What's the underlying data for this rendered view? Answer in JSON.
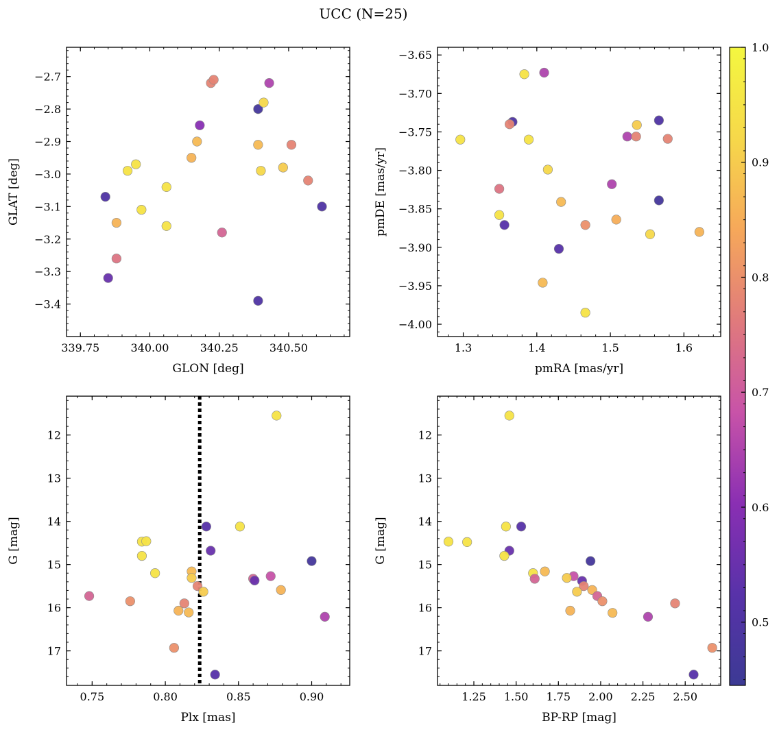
{
  "figure_title": "UCC (N=25)",
  "colorbar": {
    "range": [
      0.445,
      1.0
    ],
    "ticks": [
      0.5,
      0.6,
      0.7,
      0.8,
      0.9,
      1.0
    ],
    "tick_labels": [
      "0.5",
      "0.6",
      "0.7",
      "0.8",
      "0.9",
      "1.0"
    ],
    "colormap": "plasma",
    "colormap_stops": [
      "#3c3a94",
      "#5832a9",
      "#8a2fb3",
      "#c853a8",
      "#e07a7c",
      "#f6a85a",
      "#f6d84a",
      "#f4f740"
    ]
  },
  "chart_data": [
    {
      "type": "scatter",
      "xlabel": "GLON [deg]",
      "ylabel": "GLAT [deg]",
      "xlim": [
        339.7,
        340.72
      ],
      "ylim": [
        -3.5,
        -2.61
      ],
      "y_inverted": false,
      "xticks": [
        339.75,
        340.0,
        340.25,
        340.5
      ],
      "xtick_labels": [
        "339.75",
        "340.00",
        "340.25",
        "340.50"
      ],
      "yticks": [
        -3.4,
        -3.3,
        -3.2,
        -3.1,
        -3.0,
        -2.9,
        -2.8,
        -2.7
      ],
      "ytick_labels": [
        "−3.4",
        "−3.3",
        "−3.2",
        "−3.1",
        "−3.0",
        "−2.9",
        "−2.8",
        "−2.7"
      ],
      "points": [
        {
          "x": 340.22,
          "y": -2.72,
          "c": 0.78
        },
        {
          "x": 340.23,
          "y": -2.71,
          "c": 0.78
        },
        {
          "x": 340.43,
          "y": -2.72,
          "c": 0.65
        },
        {
          "x": 340.39,
          "y": -2.8,
          "c": 0.47
        },
        {
          "x": 340.41,
          "y": -2.78,
          "c": 0.92
        },
        {
          "x": 340.18,
          "y": -2.85,
          "c": 0.6
        },
        {
          "x": 340.17,
          "y": -2.9,
          "c": 0.87
        },
        {
          "x": 340.39,
          "y": -2.91,
          "c": 0.87
        },
        {
          "x": 340.51,
          "y": -2.91,
          "c": 0.78
        },
        {
          "x": 340.15,
          "y": -2.95,
          "c": 0.86
        },
        {
          "x": 339.95,
          "y": -2.97,
          "c": 0.95
        },
        {
          "x": 339.92,
          "y": -2.99,
          "c": 0.95
        },
        {
          "x": 340.4,
          "y": -2.99,
          "c": 0.92
        },
        {
          "x": 340.48,
          "y": -2.98,
          "c": 0.9
        },
        {
          "x": 340.57,
          "y": -3.02,
          "c": 0.78
        },
        {
          "x": 340.06,
          "y": -3.04,
          "c": 0.95
        },
        {
          "x": 339.84,
          "y": -3.07,
          "c": 0.5
        },
        {
          "x": 340.62,
          "y": -3.1,
          "c": 0.5
        },
        {
          "x": 339.97,
          "y": -3.11,
          "c": 0.95
        },
        {
          "x": 339.88,
          "y": -3.15,
          "c": 0.86
        },
        {
          "x": 340.06,
          "y": -3.16,
          "c": 0.95
        },
        {
          "x": 340.26,
          "y": -3.18,
          "c": 0.72
        },
        {
          "x": 339.88,
          "y": -3.26,
          "c": 0.75
        },
        {
          "x": 339.85,
          "y": -3.32,
          "c": 0.55
        },
        {
          "x": 340.39,
          "y": -3.39,
          "c": 0.5
        }
      ]
    },
    {
      "type": "scatter",
      "xlabel": "pmRA [mas/yr]",
      "ylabel": "pmDE [mas/yr]",
      "xlim": [
        1.265,
        1.65
      ],
      "ylim": [
        -4.016,
        -3.64
      ],
      "y_inverted": false,
      "xticks": [
        1.3,
        1.4,
        1.5,
        1.6
      ],
      "xtick_labels": [
        "1.3",
        "1.4",
        "1.5",
        "1.6"
      ],
      "yticks": [
        -4.0,
        -3.95,
        -3.9,
        -3.85,
        -3.8,
        -3.75,
        -3.7,
        -3.65
      ],
      "ytick_labels": [
        "−4.00",
        "−3.95",
        "−3.90",
        "−3.85",
        "−3.80",
        "−3.75",
        "−3.70",
        "−3.65"
      ],
      "points": [
        {
          "x": 1.383,
          "y": -3.675,
          "c": 0.95
        },
        {
          "x": 1.41,
          "y": -3.673,
          "c": 0.65
        },
        {
          "x": 1.367,
          "y": -3.737,
          "c": 0.5
        },
        {
          "x": 1.363,
          "y": -3.74,
          "c": 0.78
        },
        {
          "x": 1.296,
          "y": -3.76,
          "c": 0.95
        },
        {
          "x": 1.389,
          "y": -3.76,
          "c": 0.95
        },
        {
          "x": 1.536,
          "y": -3.741,
          "c": 0.9
        },
        {
          "x": 1.566,
          "y": -3.735,
          "c": 0.5
        },
        {
          "x": 1.523,
          "y": -3.756,
          "c": 0.65
        },
        {
          "x": 1.535,
          "y": -3.756,
          "c": 0.78
        },
        {
          "x": 1.578,
          "y": -3.759,
          "c": 0.78
        },
        {
          "x": 1.415,
          "y": -3.799,
          "c": 0.92
        },
        {
          "x": 1.502,
          "y": -3.818,
          "c": 0.65
        },
        {
          "x": 1.349,
          "y": -3.824,
          "c": 0.75
        },
        {
          "x": 1.566,
          "y": -3.839,
          "c": 0.47
        },
        {
          "x": 1.433,
          "y": -3.841,
          "c": 0.87
        },
        {
          "x": 1.349,
          "y": -3.858,
          "c": 0.95
        },
        {
          "x": 1.508,
          "y": -3.864,
          "c": 0.85
        },
        {
          "x": 1.356,
          "y": -3.871,
          "c": 0.52
        },
        {
          "x": 1.466,
          "y": -3.871,
          "c": 0.8
        },
        {
          "x": 1.621,
          "y": -3.88,
          "c": 0.86
        },
        {
          "x": 1.554,
          "y": -3.883,
          "c": 0.92
        },
        {
          "x": 1.43,
          "y": -3.902,
          "c": 0.52
        },
        {
          "x": 1.408,
          "y": -3.946,
          "c": 0.87
        },
        {
          "x": 1.466,
          "y": -3.985,
          "c": 0.95
        }
      ]
    },
    {
      "type": "scatter",
      "xlabel": "Plx [mas]",
      "ylabel": "G [mag]",
      "xlim": [
        0.7325,
        0.926
      ],
      "ylim": [
        11.1,
        17.8
      ],
      "y_inverted": true,
      "xticks": [
        0.75,
        0.8,
        0.85,
        0.9
      ],
      "xtick_labels": [
        "0.75",
        "0.80",
        "0.85",
        "0.90"
      ],
      "yticks": [
        12,
        13,
        14,
        15,
        16,
        17
      ],
      "ytick_labels": [
        "12",
        "13",
        "14",
        "15",
        "16",
        "17"
      ],
      "vline": 0.8235,
      "points": [
        {
          "x": 0.876,
          "y": 11.55,
          "c": 0.95
        },
        {
          "x": 0.828,
          "y": 14.12,
          "c": 0.52
        },
        {
          "x": 0.851,
          "y": 14.12,
          "c": 0.95
        },
        {
          "x": 0.784,
          "y": 14.47,
          "c": 0.95
        },
        {
          "x": 0.787,
          "y": 14.46,
          "c": 0.95
        },
        {
          "x": 0.831,
          "y": 14.68,
          "c": 0.55
        },
        {
          "x": 0.784,
          "y": 14.8,
          "c": 0.95
        },
        {
          "x": 0.9,
          "y": 14.92,
          "c": 0.47
        },
        {
          "x": 0.818,
          "y": 15.16,
          "c": 0.87
        },
        {
          "x": 0.793,
          "y": 15.2,
          "c": 0.95
        },
        {
          "x": 0.872,
          "y": 15.27,
          "c": 0.68
        },
        {
          "x": 0.818,
          "y": 15.31,
          "c": 0.9
        },
        {
          "x": 0.86,
          "y": 15.33,
          "c": 0.72
        },
        {
          "x": 0.861,
          "y": 15.37,
          "c": 0.55
        },
        {
          "x": 0.822,
          "y": 15.5,
          "c": 0.78
        },
        {
          "x": 0.879,
          "y": 15.59,
          "c": 0.86
        },
        {
          "x": 0.826,
          "y": 15.63,
          "c": 0.9
        },
        {
          "x": 0.748,
          "y": 15.73,
          "c": 0.72
        },
        {
          "x": 0.776,
          "y": 15.85,
          "c": 0.8
        },
        {
          "x": 0.813,
          "y": 15.9,
          "c": 0.78
        },
        {
          "x": 0.809,
          "y": 16.07,
          "c": 0.86
        },
        {
          "x": 0.816,
          "y": 16.11,
          "c": 0.87
        },
        {
          "x": 0.909,
          "y": 16.21,
          "c": 0.65
        },
        {
          "x": 0.806,
          "y": 16.93,
          "c": 0.8
        },
        {
          "x": 0.834,
          "y": 17.55,
          "c": 0.52
        }
      ]
    },
    {
      "type": "scatter",
      "xlabel": "BP-RP [mag]",
      "ylabel": "G [mag]",
      "xlim": [
        1.035,
        2.71
      ],
      "ylim": [
        11.1,
        17.8
      ],
      "y_inverted": true,
      "xticks": [
        1.25,
        1.5,
        1.75,
        2.0,
        2.25,
        2.5
      ],
      "xtick_labels": [
        "1.25",
        "1.50",
        "1.75",
        "2.00",
        "2.25",
        "2.50"
      ],
      "yticks": [
        12,
        13,
        14,
        15,
        16,
        17
      ],
      "ytick_labels": [
        "12",
        "13",
        "14",
        "15",
        "16",
        "17"
      ],
      "points": [
        {
          "x": 1.46,
          "y": 11.55,
          "c": 0.95
        },
        {
          "x": 1.53,
          "y": 14.12,
          "c": 0.52
        },
        {
          "x": 1.44,
          "y": 14.12,
          "c": 0.95
        },
        {
          "x": 1.1,
          "y": 14.47,
          "c": 0.95
        },
        {
          "x": 1.21,
          "y": 14.48,
          "c": 0.95
        },
        {
          "x": 1.46,
          "y": 14.68,
          "c": 0.55
        },
        {
          "x": 1.43,
          "y": 14.8,
          "c": 0.95
        },
        {
          "x": 1.94,
          "y": 14.92,
          "c": 0.47
        },
        {
          "x": 1.67,
          "y": 15.16,
          "c": 0.87
        },
        {
          "x": 1.6,
          "y": 15.2,
          "c": 0.95
        },
        {
          "x": 1.84,
          "y": 15.27,
          "c": 0.68
        },
        {
          "x": 1.8,
          "y": 15.31,
          "c": 0.9
        },
        {
          "x": 1.61,
          "y": 15.33,
          "c": 0.72
        },
        {
          "x": 1.89,
          "y": 15.38,
          "c": 0.55
        },
        {
          "x": 1.9,
          "y": 15.5,
          "c": 0.78
        },
        {
          "x": 1.95,
          "y": 15.59,
          "c": 0.86
        },
        {
          "x": 1.86,
          "y": 15.63,
          "c": 0.9
        },
        {
          "x": 1.98,
          "y": 15.73,
          "c": 0.72
        },
        {
          "x": 2.01,
          "y": 15.85,
          "c": 0.8
        },
        {
          "x": 2.44,
          "y": 15.9,
          "c": 0.78
        },
        {
          "x": 1.82,
          "y": 16.07,
          "c": 0.86
        },
        {
          "x": 2.07,
          "y": 16.12,
          "c": 0.87
        },
        {
          "x": 2.28,
          "y": 16.21,
          "c": 0.65
        },
        {
          "x": 2.66,
          "y": 16.93,
          "c": 0.8
        },
        {
          "x": 2.55,
          "y": 17.55,
          "c": 0.52
        }
      ]
    }
  ]
}
